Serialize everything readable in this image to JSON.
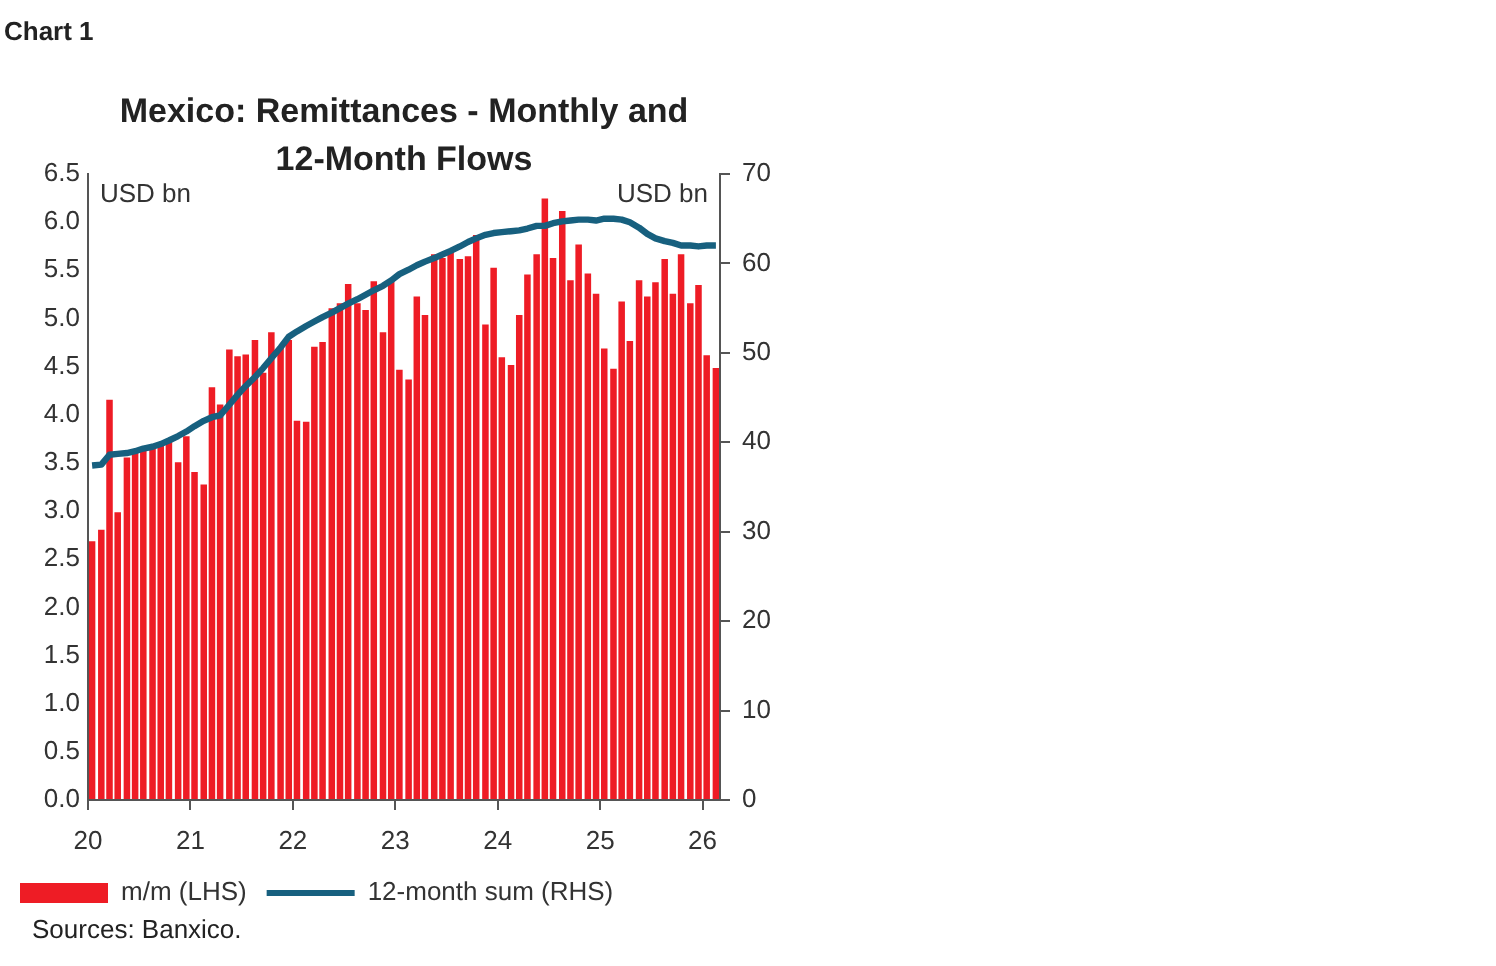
{
  "chart_data": {
    "type": "bar",
    "title": "Mexico: Remittances - Monthly and 12-Month Flows",
    "ylabel": "USD bn",
    "y2label": "USD bn",
    "annotations": [
      "Chart 1",
      "Sources: Banxico."
    ],
    "x": [
      2020.04,
      2020.13,
      2020.21,
      2020.29,
      2020.38,
      2020.46,
      2020.54,
      2020.63,
      2020.71,
      2020.79,
      2020.88,
      2020.96,
      2021.04,
      2021.13,
      2021.21,
      2021.29,
      2021.38,
      2021.46,
      2021.54,
      2021.63,
      2021.71,
      2021.79,
      2021.88,
      2021.96,
      2022.04,
      2022.13,
      2022.21,
      2022.29,
      2022.38,
      2022.46,
      2022.54,
      2022.63,
      2022.71,
      2022.79,
      2022.88,
      2022.96,
      2023.04,
      2023.13,
      2023.21,
      2023.29,
      2023.38,
      2023.46,
      2023.54,
      2023.63,
      2023.71,
      2023.79,
      2023.88,
      2023.96,
      2024.04,
      2024.13,
      2024.21,
      2024.29,
      2024.38,
      2024.46,
      2024.54,
      2024.63,
      2024.71,
      2024.79,
      2024.88,
      2024.96,
      2025.04,
      2025.13,
      2025.21,
      2025.29,
      2025.38,
      2025.46,
      2025.54,
      2025.63,
      2025.71,
      2025.79,
      2025.88,
      2025.96,
      2026.04,
      2026.13
    ],
    "series": [
      {
        "name": "m/m (LHS)",
        "type": "bar",
        "color": "#ee1c25",
        "values": [
          2.68,
          2.8,
          4.15,
          2.98,
          3.55,
          3.62,
          3.65,
          3.68,
          3.7,
          3.72,
          3.5,
          3.77,
          3.4,
          3.27,
          4.28,
          4.1,
          4.67,
          4.6,
          4.62,
          4.77,
          4.43,
          4.85,
          4.7,
          4.77,
          3.93,
          3.92,
          4.7,
          4.75,
          5.1,
          5.15,
          5.35,
          5.15,
          5.08,
          5.38,
          4.85,
          5.38,
          4.46,
          4.36,
          5.22,
          5.03,
          5.66,
          5.62,
          5.7,
          5.61,
          5.64,
          5.86,
          4.93,
          5.52,
          4.59,
          4.51,
          5.03,
          5.45,
          5.66,
          6.24,
          5.62,
          6.11,
          5.39,
          5.76,
          5.46,
          5.25,
          4.68,
          4.47,
          5.17,
          4.76,
          5.39,
          5.22,
          5.37,
          5.61,
          5.25,
          5.66,
          5.15,
          5.34,
          4.61,
          4.48
        ]
      },
      {
        "name": "12-month sum (RHS)",
        "type": "line",
        "axis": "y2",
        "color": "#17607f",
        "values": [
          37.4,
          37.5,
          38.6,
          38.7,
          38.8,
          39.0,
          39.3,
          39.5,
          39.8,
          40.2,
          40.7,
          41.2,
          41.8,
          42.4,
          42.8,
          43.0,
          44.2,
          45.3,
          46.3,
          47.3,
          48.3,
          49.4,
          50.6,
          51.8,
          52.4,
          53.0,
          53.5,
          54.0,
          54.5,
          55.0,
          55.5,
          56.0,
          56.5,
          57.0,
          57.5,
          58.1,
          58.8,
          59.3,
          59.8,
          60.2,
          60.6,
          61.0,
          61.4,
          61.9,
          62.4,
          62.8,
          63.2,
          63.4,
          63.5,
          63.6,
          63.7,
          63.9,
          64.2,
          64.2,
          64.5,
          64.7,
          64.8,
          64.9,
          64.9,
          64.8,
          65.0,
          65.0,
          64.9,
          64.6,
          64.0,
          63.3,
          62.8,
          62.5,
          62.3,
          62.0,
          62.0,
          61.9,
          62.0,
          62.0
        ]
      }
    ],
    "xlim": [
      2020,
      2026.17
    ],
    "xticks": [
      {
        "value": 2020,
        "label": "20"
      },
      {
        "value": 2021,
        "label": "21"
      },
      {
        "value": 2022,
        "label": "22"
      },
      {
        "value": 2023,
        "label": "23"
      },
      {
        "value": 2024,
        "label": "24"
      },
      {
        "value": 2025,
        "label": "25"
      },
      {
        "value": 2026,
        "label": "26"
      }
    ],
    "ylim": [
      0,
      6.5
    ],
    "yticks": [
      {
        "value": 0,
        "label": "0.0"
      },
      0.5,
      {
        "value": 1,
        "label": "1.0"
      },
      1.5,
      {
        "value": 2,
        "label": "2.0"
      },
      2.5,
      {
        "value": 3,
        "label": "3.0"
      },
      3.5,
      {
        "value": 4,
        "label": "4.0"
      },
      4.5,
      {
        "value": 5,
        "label": "5.0"
      },
      5.5,
      {
        "value": 6,
        "label": "6.0"
      },
      6.5
    ],
    "y2lim": [
      0,
      70
    ],
    "y2ticks": [
      0,
      10,
      20,
      30,
      40,
      50,
      60,
      70
    ],
    "grid": false,
    "legend": "bottom",
    "marker": "none",
    "line_style": "solid"
  }
}
